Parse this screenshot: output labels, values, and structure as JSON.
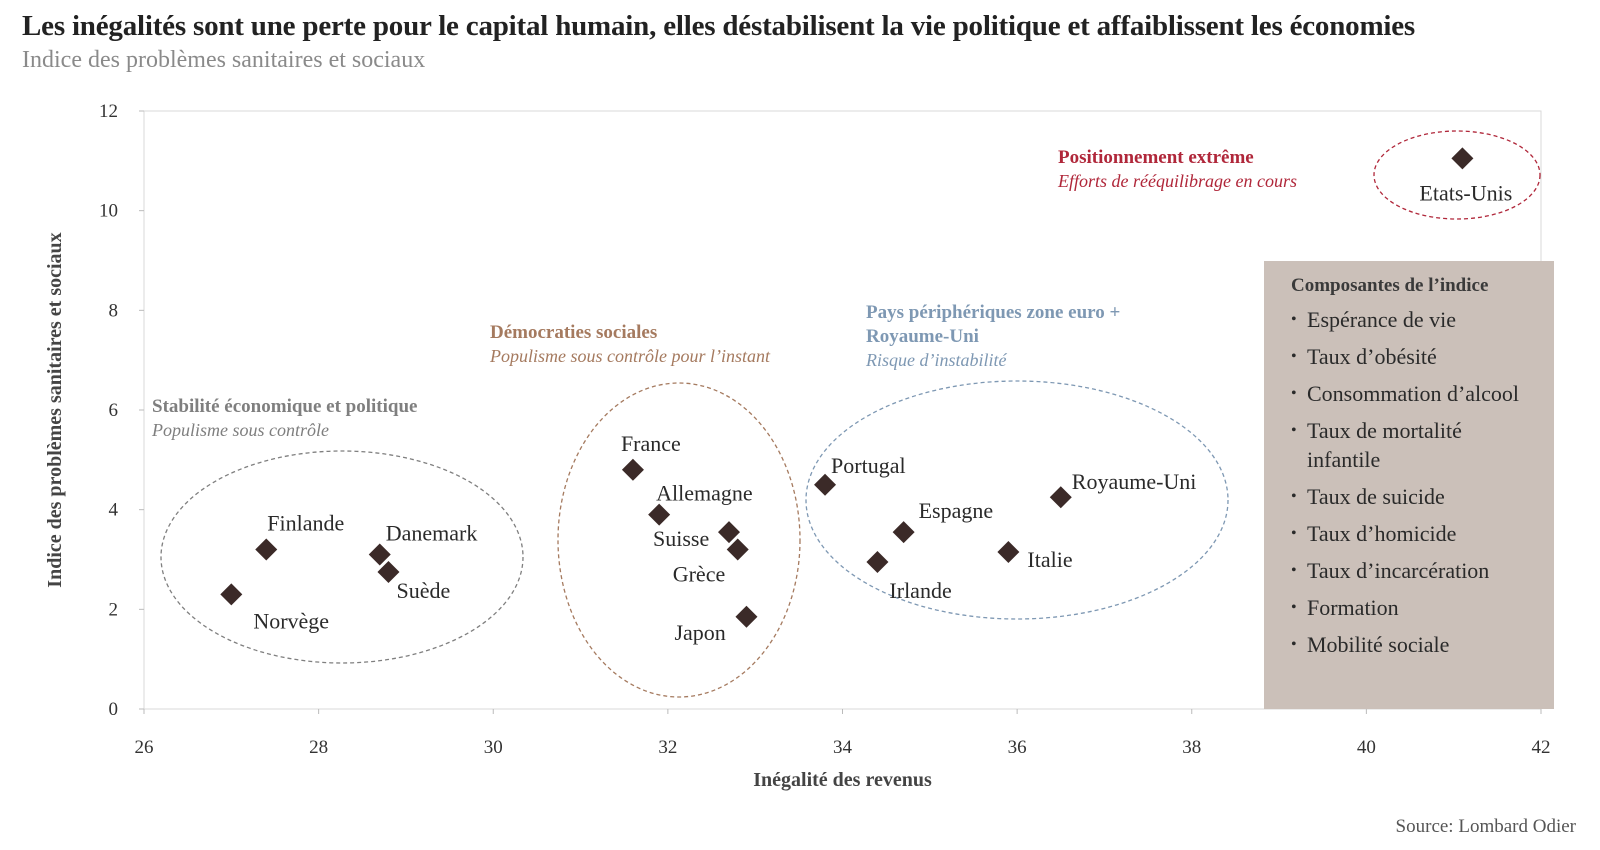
{
  "title": "Les inégalités sont une perte pour le capital humain, elles déstabilisent la vie politique et affaiblissent les économies",
  "subtitle": "Indice des problèmes sanitaires et sociaux",
  "source": "Source: Lombard Odier",
  "colors": {
    "marker": "#3b2a28",
    "group_gray": "#7f7f7f",
    "group_brown": "#a57a5f",
    "group_blue": "#7e98b3",
    "group_red": "#b0273a",
    "legend_bg": "#cbc0b9"
  },
  "chart_data": {
    "type": "scatter",
    "xlabel": "Inégalité des revenus",
    "ylabel": "Indice des problèmes sanitaires et sociaux",
    "xlim": [
      26,
      42
    ],
    "ylim": [
      0,
      12
    ],
    "xticks": [
      26,
      28,
      30,
      32,
      34,
      36,
      38,
      40,
      42
    ],
    "yticks": [
      0,
      2,
      4,
      6,
      8,
      10,
      12
    ],
    "grid": false,
    "points": [
      {
        "label": "Norvège",
        "x": 27.0,
        "y": 2.3
      },
      {
        "label": "Finlande",
        "x": 27.4,
        "y": 3.2
      },
      {
        "label": "Danemark",
        "x": 28.7,
        "y": 3.1
      },
      {
        "label": "Suède",
        "x": 28.8,
        "y": 2.75
      },
      {
        "label": "France",
        "x": 31.6,
        "y": 4.8
      },
      {
        "label": "Allemagne",
        "x": 31.9,
        "y": 3.9
      },
      {
        "label": "Suisse",
        "x": 32.7,
        "y": 3.55
      },
      {
        "label": "Grèce",
        "x": 32.8,
        "y": 3.2
      },
      {
        "label": "Japon",
        "x": 32.9,
        "y": 1.85
      },
      {
        "label": "Portugal",
        "x": 33.8,
        "y": 4.5
      },
      {
        "label": "Irlande",
        "x": 34.4,
        "y": 2.95
      },
      {
        "label": "Espagne",
        "x": 34.7,
        "y": 3.55
      },
      {
        "label": "Italie",
        "x": 35.9,
        "y": 3.15
      },
      {
        "label": "Royaume-Uni",
        "x": 36.5,
        "y": 4.25
      },
      {
        "label": "Etats-Unis",
        "x": 41.1,
        "y": 11.05
      }
    ],
    "groups": [
      {
        "title": "Stabilité économique et politique",
        "subtitle": "Populisme sous contrôle",
        "color": "#7f7f7f"
      },
      {
        "title": "Démocraties sociales",
        "subtitle": "Populisme sous contrôle pour l’instant",
        "color": "#a57a5f"
      },
      {
        "title": "Pays périphériques zone euro +",
        "title_line2": "Royaume-Uni",
        "subtitle": "Risque d’instabilité",
        "color": "#7e98b3"
      },
      {
        "title": "Positionnement extrême",
        "subtitle": "Efforts de rééquilibrage en cours",
        "color": "#b0273a"
      }
    ]
  },
  "legend": {
    "title": "Composantes de l’indice",
    "items": [
      "Espérance de vie",
      "Taux d’obésité",
      "Consommation d’alcool",
      "Taux de mortalité infantile",
      "Taux de suicide",
      "Taux d’homicide",
      "Taux d’incarcération",
      "Formation",
      "Mobilité sociale"
    ]
  }
}
